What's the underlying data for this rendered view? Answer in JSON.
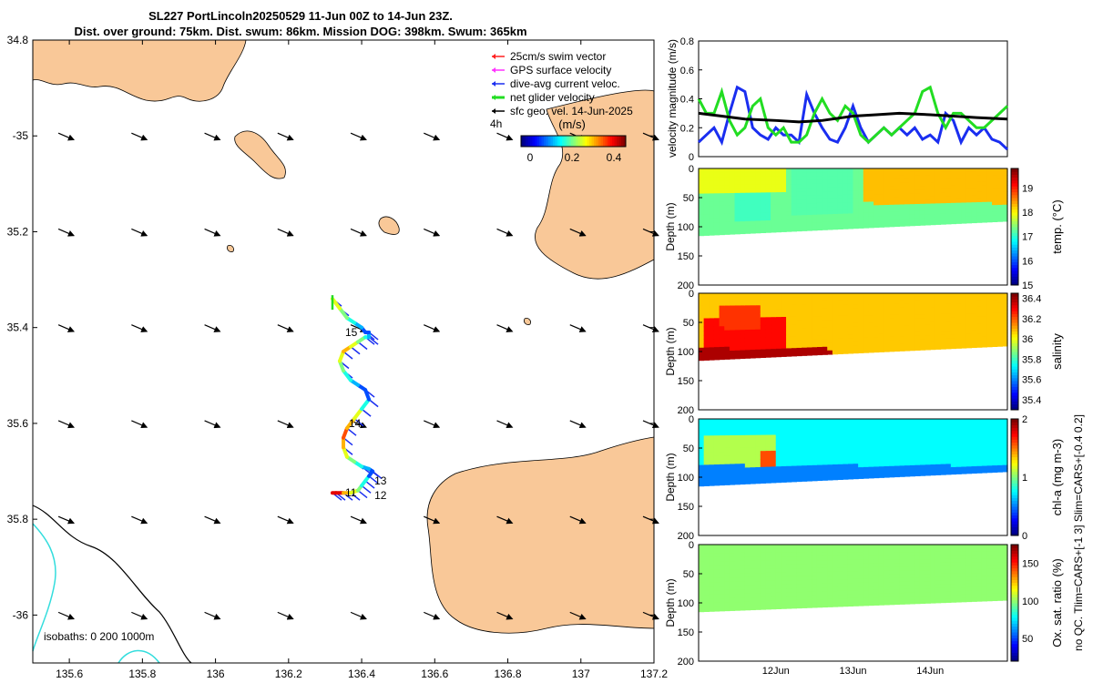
{
  "title": {
    "line1": "SL227 PortLincoln20250529 11-Jun 00Z to 14-Jun 23Z.",
    "line2": "Dist. over ground: 75km. Dist. swum: 86km. Mission DOG: 398km. Swum: 365km"
  },
  "colors": {
    "land": "#f9c898",
    "swim_vector": "#ff2020",
    "gps_velocity": "#ff30ff",
    "dive_avg": "#1a2ef0",
    "net_glider": "#22dd22",
    "geo_vel": "#000000",
    "isobath_0": "#000000",
    "isobath_200": "#33dddd",
    "isobath_1000": "#33dddd"
  },
  "chart_data": [
    {
      "type": "scatter",
      "name": "map",
      "xlabel": "Longitude",
      "ylabel": "Latitude",
      "xlim": [
        135.5,
        137.2
      ],
      "ylim": [
        -36.1,
        -34.8
      ],
      "xticks": [
        135.6,
        135.8,
        136,
        136.2,
        136.4,
        136.6,
        136.8,
        137,
        137.2
      ],
      "xtick_labels": [
        "135.6",
        "135.8",
        "136",
        "136.2",
        "136.4",
        "136.6",
        "136.8",
        "137",
        "137.2"
      ],
      "yticks": [
        -34.8,
        -35,
        -35.2,
        -35.4,
        -35.6,
        -35.8,
        -36
      ],
      "ytick_labels": [
        "34.8",
        "-35",
        "35.2",
        "35.4",
        "35.6",
        "35.8",
        "-36"
      ],
      "legend": [
        {
          "label": "25cm/s swim vector",
          "color": "#ff2020"
        },
        {
          "label": "GPS surface velocity",
          "color": "#ff30ff"
        },
        {
          "label": "dive-avg current veloc.",
          "color": "#1a2ef0"
        },
        {
          "label": "net glider velocity",
          "color": "#22dd22"
        },
        {
          "label": "sfc geo. vel. 14-Jun-2025",
          "color": "#000000"
        }
      ],
      "legend_position": "top-right",
      "time_marker_label": "4h",
      "colorbar": {
        "label": "(m/s)",
        "ticks": [
          "0",
          "0.2",
          "0.4"
        ],
        "range": [
          0,
          0.5
        ]
      },
      "isobath_label": "isobaths: 0   200  1000m",
      "track": {
        "lon": [
          136.32,
          136.33,
          136.35,
          136.37,
          136.39,
          136.4,
          136.41,
          136.42,
          136.43,
          136.42,
          136.4,
          136.38,
          136.36,
          136.35,
          136.35,
          136.36,
          136.38,
          136.4,
          136.42,
          136.41,
          136.39,
          136.37,
          136.35,
          136.34,
          136.35,
          136.37,
          136.39,
          136.41,
          136.42,
          136.42,
          136.41,
          136.4,
          136.38,
          136.36,
          136.34,
          136.32
        ],
        "lat": [
          -35.745,
          -35.745,
          -35.745,
          -35.745,
          -35.74,
          -35.73,
          -35.72,
          -35.71,
          -35.7,
          -35.695,
          -35.69,
          -35.68,
          -35.67,
          -35.65,
          -35.63,
          -35.61,
          -35.59,
          -35.57,
          -35.55,
          -35.53,
          -35.52,
          -35.51,
          -35.49,
          -35.47,
          -35.45,
          -35.44,
          -35.43,
          -35.42,
          -35.42,
          -35.41,
          -35.41,
          -35.4,
          -35.39,
          -35.38,
          -35.36,
          -35.34
        ],
        "speed": [
          0.45,
          0.45,
          0.35,
          0.3,
          0.25,
          0.2,
          0.2,
          0.1,
          0.1,
          0.15,
          0.2,
          0.25,
          0.3,
          0.35,
          0.4,
          0.35,
          0.3,
          0.2,
          0.1,
          0.1,
          0.15,
          0.2,
          0.25,
          0.3,
          0.35,
          0.3,
          0.25,
          0.2,
          0.15,
          0.1,
          0.1,
          0.15,
          0.2,
          0.25,
          0.3,
          0.35
        ]
      },
      "day_labels": [
        {
          "label": "15",
          "lon": 136.34,
          "lat": -35.41
        },
        {
          "label": "14",
          "lon": 136.35,
          "lat": -35.6
        },
        {
          "label": "13",
          "lon": 136.42,
          "lat": -35.72
        },
        {
          "label": "12",
          "lon": 136.42,
          "lat": -35.75
        },
        {
          "label": "11",
          "lon": 136.34,
          "lat": -35.745
        }
      ],
      "geo_arrows": {
        "lons": [
          135.6,
          135.8,
          136.0,
          136.2,
          136.4,
          136.6,
          136.8,
          137.0,
          137.2
        ],
        "lats": [
          -35.0,
          -35.2,
          -35.4,
          -35.6,
          -35.8,
          -36.0
        ],
        "u": 0.7,
        "v": -0.3
      }
    },
    {
      "type": "line",
      "name": "velocity",
      "ylabel": "velocity magnitude (m/s)",
      "ylim": [
        0,
        0.8
      ],
      "yticks": [
        0,
        0.2,
        0.4,
        0.6,
        0.8
      ],
      "ytick_labels": [
        "0",
        "0.2",
        "0.4",
        "0.6",
        "0.8"
      ],
      "x_range_days": [
        11,
        15
      ],
      "series": [
        {
          "name": "dive-avg current veloc.",
          "color": "#1a2ef0",
          "t": [
            11.0,
            11.1,
            11.2,
            11.3,
            11.4,
            11.5,
            11.6,
            11.7,
            11.8,
            11.9,
            12.0,
            12.1,
            12.2,
            12.3,
            12.4,
            12.5,
            12.6,
            12.7,
            12.8,
            12.9,
            13.0,
            13.1,
            13.2,
            13.3,
            13.4,
            13.5,
            13.6,
            13.7,
            13.8,
            13.9,
            14.0,
            14.1,
            14.2,
            14.3,
            14.4,
            14.5,
            14.6,
            14.7,
            14.8,
            14.9,
            15.0
          ],
          "v": [
            0.1,
            0.15,
            0.2,
            0.1,
            0.3,
            0.48,
            0.45,
            0.2,
            0.15,
            0.12,
            0.2,
            0.15,
            0.15,
            0.1,
            0.43,
            0.3,
            0.2,
            0.12,
            0.1,
            0.2,
            0.35,
            0.2,
            0.1,
            0.15,
            0.2,
            0.15,
            0.2,
            0.15,
            0.2,
            0.12,
            0.15,
            0.1,
            0.3,
            0.25,
            0.1,
            0.2,
            0.15,
            0.2,
            0.12,
            0.1,
            0.05
          ]
        },
        {
          "name": "net glider velocity",
          "color": "#22dd22",
          "t": [
            11.0,
            11.1,
            11.2,
            11.3,
            11.4,
            11.5,
            11.6,
            11.7,
            11.8,
            11.9,
            12.0,
            12.1,
            12.2,
            12.3,
            12.4,
            12.5,
            12.6,
            12.7,
            12.8,
            12.9,
            13.0,
            13.1,
            13.2,
            13.3,
            13.4,
            13.5,
            13.6,
            13.7,
            13.8,
            13.9,
            14.0,
            14.1,
            14.2,
            14.3,
            14.4,
            14.5,
            14.6,
            14.7,
            14.8,
            14.9,
            15.0
          ],
          "v": [
            0.4,
            0.3,
            0.3,
            0.45,
            0.25,
            0.15,
            0.2,
            0.35,
            0.4,
            0.2,
            0.15,
            0.2,
            0.1,
            0.1,
            0.15,
            0.3,
            0.4,
            0.3,
            0.25,
            0.35,
            0.3,
            0.15,
            0.1,
            0.15,
            0.2,
            0.15,
            0.2,
            0.25,
            0.3,
            0.45,
            0.48,
            0.3,
            0.2,
            0.3,
            0.3,
            0.25,
            0.2,
            0.2,
            0.25,
            0.3,
            0.35
          ]
        },
        {
          "name": "sfc geo. vel.",
          "color": "#000000",
          "t": [
            11.0,
            11.3,
            11.6,
            12.0,
            12.3,
            12.6,
            13.0,
            13.3,
            13.6,
            14.0,
            14.3,
            14.6,
            15.0
          ],
          "v": [
            0.3,
            0.28,
            0.26,
            0.25,
            0.24,
            0.25,
            0.28,
            0.29,
            0.3,
            0.29,
            0.28,
            0.27,
            0.26
          ]
        }
      ],
      "xtick_labels": [
        "12Jun",
        "13Jun",
        "14Jun"
      ]
    },
    {
      "type": "heatmap",
      "name": "temperature",
      "ylabel": "Depth (m)",
      "yticks": [
        "0",
        "50",
        "100",
        "150",
        "200"
      ],
      "ylim": [
        0,
        200
      ],
      "colorbar_label": "temp. (°C)",
      "colorbar_ticks": [
        "15",
        "16",
        "17",
        "18",
        "19"
      ],
      "clim": [
        15,
        19.8
      ],
      "base_value": 17.3,
      "bottom_depth_start": 115,
      "bottom_depth_end": 90,
      "features": [
        {
          "t0": 11.45,
          "t1": 11.9,
          "d0": 20,
          "d1": 90,
          "value": 17.1
        },
        {
          "t0": 12.2,
          "t1": 13.0,
          "d0": 0,
          "d1": 80,
          "value": 17.2
        },
        {
          "t0": 11.0,
          "t1": 12.1,
          "d0": 0,
          "d1": 40,
          "value": 17.9
        },
        {
          "t0": 13.15,
          "t1": 15.0,
          "d0": 0,
          "d1": 60,
          "value": 18.3
        }
      ]
    },
    {
      "type": "heatmap",
      "name": "salinity",
      "ylabel": "Depth (m)",
      "yticks": [
        "0",
        "50",
        "100",
        "150",
        "200"
      ],
      "ylim": [
        0,
        200
      ],
      "colorbar_label": "salinity",
      "colorbar_ticks": [
        "35.4",
        "35.6",
        "35.8",
        "36",
        "36.2",
        "36.4"
      ],
      "clim": [
        35.3,
        36.45
      ],
      "base_value": 36.08,
      "bottom_depth_start": 115,
      "bottom_depth_end": 90,
      "features": [
        {
          "t0": 11.1,
          "t1": 12.1,
          "d0": 40,
          "d1": 100,
          "value": 36.3
        },
        {
          "t0": 11.3,
          "t1": 11.8,
          "d0": 20,
          "d1": 60,
          "value": 36.25
        },
        {
          "t0": 11.0,
          "t1": 12.7,
          "d0": 95,
          "d1": 120,
          "value": 36.4
        }
      ]
    },
    {
      "type": "heatmap",
      "name": "chl-a",
      "ylabel": "Depth (m)",
      "yticks": [
        "0",
        "50",
        "100",
        "150",
        "200"
      ],
      "ylim": [
        0,
        200
      ],
      "colorbar_label": "chl-a (mg m-3)",
      "colorbar_ticks": [
        "0",
        "1",
        "2"
      ],
      "clim": [
        0,
        2
      ],
      "base_value": 0.75,
      "bottom_depth_start": 115,
      "bottom_depth_end": 90,
      "features": [
        {
          "t0": 11.1,
          "t1": 12.0,
          "d0": 30,
          "d1": 100,
          "value": 1.1
        },
        {
          "t0": 11.8,
          "t1": 12.0,
          "d0": 55,
          "d1": 80,
          "value": 1.6
        },
        {
          "t0": 11.0,
          "t1": 15.0,
          "d0": 80,
          "d1": 125,
          "value": 0.5
        }
      ]
    },
    {
      "type": "heatmap",
      "name": "oxygen",
      "ylabel": "Depth (m)",
      "yticks": [
        "0",
        "50",
        "100",
        "150",
        "200"
      ],
      "ylim": [
        0,
        200
      ],
      "colorbar_label": "Ox. sat. ratio (%)",
      "colorbar_ticks": [
        "50",
        "100",
        "150"
      ],
      "clim": [
        20,
        175
      ],
      "base_value": 100,
      "bottom_depth_start": 115,
      "bottom_depth_end": 95,
      "features": []
    }
  ],
  "right_annotation": "no QC. Tlim=CARS+[-1 3] Slim=CARS+[-0.4 0.2]"
}
